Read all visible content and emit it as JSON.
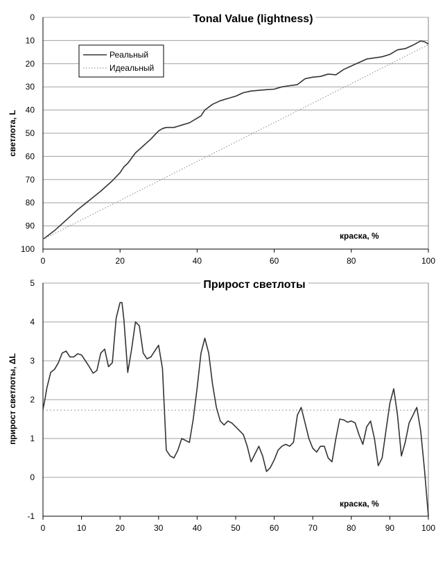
{
  "chart_data": [
    {
      "type": "line",
      "title": "Tonal Value (lightness)",
      "xlabel": "краска, %",
      "ylabel": "светлота, L",
      "xlim": [
        0,
        100
      ],
      "ylim": [
        0,
        100
      ],
      "y_inverted": true,
      "grid": "horizontal",
      "legend_position": "top-left",
      "x_ticks": [
        "0",
        "20",
        "40",
        "60",
        "80",
        "100"
      ],
      "y_ticks": [
        "0",
        "10",
        "20",
        "30",
        "40",
        "50",
        "60",
        "70",
        "80",
        "90",
        "100"
      ],
      "series": [
        {
          "name": "Реальный",
          "style": "solid",
          "color": "#333333",
          "x": [
            0,
            3,
            6,
            9,
            12,
            15,
            18,
            20,
            21,
            22,
            24,
            26,
            28,
            30,
            31,
            32,
            34,
            36,
            38,
            40,
            41,
            42,
            44,
            46,
            48,
            50,
            52,
            54,
            56,
            58,
            60,
            62,
            64,
            66,
            68,
            70,
            72,
            74,
            76,
            78,
            80,
            82,
            84,
            86,
            88,
            90,
            92,
            94,
            96,
            98,
            99,
            100
          ],
          "y": [
            95.8,
            92,
            87.5,
            83,
            79,
            75,
            70.5,
            67,
            64.5,
            63,
            58.5,
            55.5,
            52.5,
            49,
            48,
            47.5,
            47.5,
            46.5,
            45.5,
            43.5,
            42.5,
            40,
            37.5,
            36,
            35,
            34,
            32.5,
            31.8,
            31.5,
            31.2,
            31,
            30,
            29.5,
            29,
            26.5,
            25.8,
            25.5,
            24.5,
            24.8,
            22.5,
            21,
            19.5,
            18,
            17.5,
            17,
            16,
            14,
            13.5,
            12,
            10.2,
            10.5,
            11.5
          ]
        },
        {
          "name": "Идеальный",
          "style": "dotted",
          "color": "#999999",
          "x": [
            0,
            100
          ],
          "y": [
            95.8,
            11.8
          ]
        }
      ]
    },
    {
      "type": "line",
      "title": "Прирост светлоты",
      "xlabel": "краска, %",
      "ylabel": "прирост светлоты, ΔL",
      "xlim": [
        0,
        100
      ],
      "ylim": [
        -1,
        5
      ],
      "grid": "horizontal",
      "x_ticks": [
        "0",
        "10",
        "20",
        "30",
        "40",
        "50",
        "60",
        "70",
        "80",
        "90",
        "100"
      ],
      "y_ticks": [
        "-1",
        "0",
        "1",
        "2",
        "3",
        "4",
        "5"
      ],
      "reference_line": {
        "style": "dotted",
        "color": "#999999",
        "y": 1.73
      },
      "series": [
        {
          "name": "",
          "style": "solid",
          "color": "#333333",
          "x": [
            0,
            0.5,
            1,
            2,
            3,
            4,
            5,
            6,
            7,
            8,
            9,
            10,
            11,
            12,
            13,
            14,
            15,
            16,
            17,
            18,
            19,
            20,
            20.5,
            21,
            22,
            23,
            24,
            25,
            26,
            27,
            28,
            29,
            30,
            31,
            32,
            33,
            34,
            35,
            36,
            37,
            38,
            39,
            40,
            41,
            42,
            43,
            44,
            45,
            46,
            47,
            48,
            49,
            50,
            51,
            52,
            53,
            54,
            55,
            56,
            57,
            58,
            59,
            60,
            61,
            62,
            63,
            64,
            65,
            66,
            67,
            68,
            69,
            70,
            71,
            72,
            73,
            74,
            75,
            76,
            77,
            78,
            79,
            80,
            81,
            82,
            83,
            84,
            85,
            86,
            87,
            88,
            89,
            90,
            91,
            92,
            93,
            94,
            95,
            96,
            97,
            98,
            99,
            100
          ],
          "y": [
            1.75,
            2.0,
            2.3,
            2.7,
            2.78,
            2.95,
            3.2,
            3.25,
            3.1,
            3.1,
            3.18,
            3.15,
            3.0,
            2.85,
            2.68,
            2.75,
            3.2,
            3.3,
            2.85,
            2.95,
            4.1,
            4.5,
            4.5,
            4.05,
            2.7,
            3.3,
            4.0,
            3.9,
            3.2,
            3.05,
            3.1,
            3.25,
            3.4,
            2.8,
            0.7,
            0.55,
            0.5,
            0.7,
            1.0,
            0.95,
            0.9,
            1.5,
            2.3,
            3.2,
            3.58,
            3.2,
            2.4,
            1.8,
            1.45,
            1.35,
            1.45,
            1.4,
            1.3,
            1.2,
            1.1,
            0.8,
            0.4,
            0.6,
            0.8,
            0.55,
            0.15,
            0.25,
            0.45,
            0.7,
            0.8,
            0.85,
            0.8,
            0.9,
            1.6,
            1.8,
            1.4,
            1.0,
            0.75,
            0.65,
            0.8,
            0.8,
            0.5,
            0.4,
            1.0,
            1.5,
            1.48,
            1.42,
            1.45,
            1.4,
            1.1,
            0.85,
            1.3,
            1.45,
            1.0,
            0.3,
            0.5,
            1.2,
            1.9,
            2.28,
            1.6,
            0.55,
            0.9,
            1.4,
            1.6,
            1.8,
            1.2,
            0.2,
            -1.0
          ]
        }
      ]
    }
  ]
}
